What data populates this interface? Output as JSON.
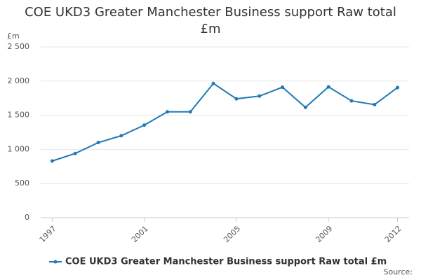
{
  "chart_data": {
    "type": "line",
    "title": "COE UKD3 Greater Manchester Business support Raw total £m",
    "ylabel": "£m",
    "x": [
      1997,
      1998,
      1999,
      2000,
      2001,
      2002,
      2003,
      2004,
      2005,
      2006,
      2007,
      2008,
      2009,
      2010,
      2011,
      2012
    ],
    "series": [
      {
        "name": "COE UKD3 Greater Manchester Business support Raw total £m",
        "color": "#1f7ab4",
        "values": [
          830,
          940,
          1100,
          1200,
          1355,
          1550,
          1550,
          1965,
          1740,
          1780,
          1910,
          1615,
          1915,
          1710,
          1655,
          1905
        ]
      }
    ],
    "xlim": [
      1996.5,
      2012.5
    ],
    "xticks": [
      1997,
      2001,
      2005,
      2009,
      2012
    ],
    "ylim": [
      0,
      2500
    ],
    "yticks": [
      0,
      500,
      {
        "value": 1000,
        "label": "1 000"
      },
      {
        "value": 1500,
        "label": "1 500"
      },
      {
        "value": 2000,
        "label": "2 000"
      },
      {
        "value": 2500,
        "label": "2 500"
      }
    ],
    "grid": true,
    "source": "Source:"
  }
}
